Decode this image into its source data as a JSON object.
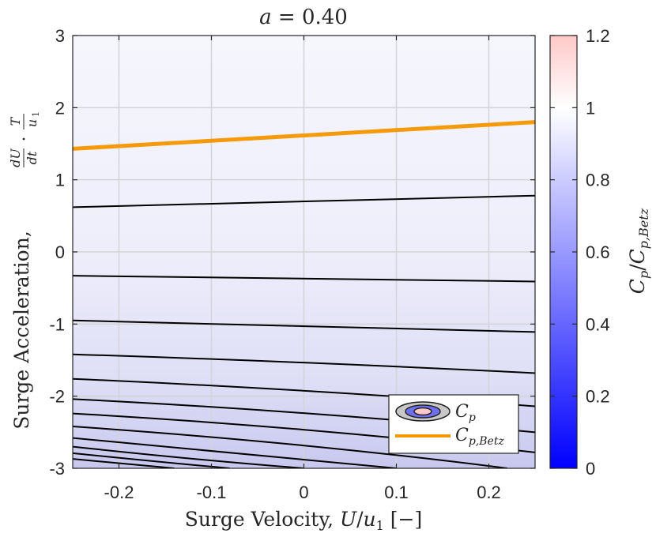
{
  "chart_data": {
    "type": "contour",
    "title": "a = 0.40",
    "xlabel": "Surge Velocity, U/u₁ [−]",
    "ylabel": "Surge Acceleration, dU/dt · T/u₁",
    "xlim": [
      -0.25,
      0.25
    ],
    "ylim": [
      -3,
      3
    ],
    "xticks": [
      -0.2,
      -0.1,
      0,
      0.1,
      0.2
    ],
    "xtick_labels": [
      "-0.2",
      "-0.1",
      "0",
      "0.1",
      "0.2"
    ],
    "yticks": [
      -3,
      -2,
      -1,
      0,
      1,
      2,
      3
    ],
    "ytick_labels": [
      "-3",
      "-2",
      "-1",
      "0",
      "1",
      "2",
      "3"
    ],
    "grid": true,
    "colorbar": {
      "label": "C_p/C_p,Betz",
      "range": [
        0,
        1.2
      ],
      "ticks": [
        0,
        0.2,
        0.4,
        0.6,
        0.8,
        1,
        1.2
      ],
      "tick_labels": [
        "0",
        "0.2",
        "0.4",
        "0.6",
        "0.8",
        "1",
        "1.2"
      ],
      "colormap": [
        "#0000ff",
        "#ffffff",
        "#ffc8c8"
      ]
    },
    "contour_lines": [
      {
        "x": [
          -0.25,
          0.25
        ],
        "y": [
          0.62,
          0.78
        ]
      },
      {
        "x": [
          -0.25,
          0.25
        ],
        "y": [
          -0.33,
          -0.41
        ]
      },
      {
        "x": [
          -0.25,
          0.25
        ],
        "y": [
          -0.95,
          -1.11
        ]
      },
      {
        "x": [
          -0.25,
          0.0,
          0.25
        ],
        "y": [
          -1.42,
          -1.52,
          -1.68
        ]
      },
      {
        "x": [
          -0.25,
          0.0,
          0.25
        ],
        "y": [
          -1.76,
          -1.9,
          -2.14
        ]
      },
      {
        "x": [
          -0.25,
          0.0,
          0.25
        ],
        "y": [
          -2.04,
          -2.2,
          -2.5
        ]
      },
      {
        "x": [
          -0.25,
          0.0,
          0.25
        ],
        "y": [
          -2.24,
          -2.42,
          -2.78
        ]
      },
      {
        "x": [
          -0.25,
          0.0,
          0.22
        ],
        "y": [
          -2.42,
          -2.64,
          -3.0
        ]
      },
      {
        "x": [
          -0.25,
          -0.05,
          0.1
        ],
        "y": [
          -2.58,
          -2.82,
          -3.0
        ]
      },
      {
        "x": [
          -0.25,
          -0.12,
          0.0
        ],
        "y": [
          -2.7,
          -2.88,
          -3.0
        ]
      },
      {
        "x": [
          -0.25,
          -0.15,
          -0.08
        ],
        "y": [
          -2.79,
          -2.92,
          -3.0
        ]
      },
      {
        "x": [
          -0.25,
          -0.18,
          -0.14
        ],
        "y": [
          -2.87,
          -2.95,
          -3.0
        ]
      }
    ],
    "betz_line": {
      "x": [
        -0.25,
        0.25
      ],
      "y": [
        1.43,
        1.8
      ],
      "color": "#f59a0a"
    },
    "legend": {
      "position": "bottom-right",
      "entries": [
        "C_p",
        "C_p,Betz"
      ]
    }
  }
}
